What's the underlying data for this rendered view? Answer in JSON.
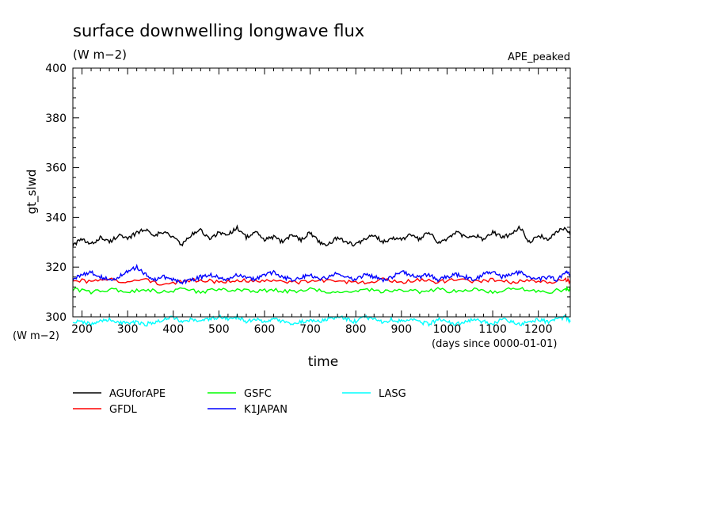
{
  "chart_data": {
    "type": "line",
    "title": "surface downwelling longwave flux",
    "subtitle": "(W m−2)",
    "experiment": "APE_peaked",
    "ylabel": "gt_slwd",
    "yunit": "(W m−2)",
    "xlabel": "time",
    "xunit": "(days since 0000-01-01)",
    "xlim": [
      180,
      1270
    ],
    "ylim": [
      300,
      400
    ],
    "xticks": [
      "200",
      "300",
      "400",
      "500",
      "600",
      "700",
      "800",
      "900",
      "1000",
      "1100",
      "1200"
    ],
    "yticks": [
      "300",
      "320",
      "340",
      "360",
      "380",
      "400"
    ],
    "grid": false,
    "legend_position": "bottom",
    "series": [
      {
        "name": "AGUforAPE",
        "color": "#000000",
        "x": [
          180,
          200,
          220,
          240,
          260,
          280,
          300,
          320,
          340,
          360,
          380,
          400,
          420,
          440,
          460,
          480,
          500,
          520,
          540,
          560,
          580,
          600,
          620,
          640,
          660,
          680,
          700,
          720,
          740,
          760,
          780,
          800,
          820,
          840,
          860,
          880,
          900,
          920,
          940,
          960,
          980,
          1000,
          1020,
          1040,
          1060,
          1080,
          1100,
          1120,
          1140,
          1160,
          1180,
          1200,
          1220,
          1240,
          1260,
          1270
        ],
        "y": [
          329,
          331,
          329,
          332,
          330,
          333,
          331,
          334,
          335,
          333,
          334,
          332,
          329,
          333,
          335,
          331,
          334,
          333,
          336,
          332,
          334,
          331,
          332,
          330,
          333,
          331,
          334,
          330,
          329,
          332,
          330,
          329,
          331,
          333,
          330,
          332,
          331,
          333,
          331,
          334,
          330,
          331,
          334,
          332,
          333,
          331,
          334,
          332,
          333,
          336,
          330,
          333,
          331,
          334,
          336,
          333
        ]
      },
      {
        "name": "GFDL",
        "color": "#ff0000",
        "x": [
          180,
          220,
          260,
          300,
          340,
          380,
          420,
          460,
          500,
          540,
          580,
          620,
          660,
          700,
          740,
          780,
          820,
          860,
          900,
          940,
          980,
          1020,
          1060,
          1100,
          1140,
          1180,
          1220,
          1260,
          1270
        ],
        "y": [
          315,
          314,
          315,
          314,
          315,
          313,
          314,
          315,
          314,
          315,
          314,
          315,
          314,
          314,
          315,
          314,
          314,
          315,
          314,
          315,
          314,
          315,
          314,
          315,
          314,
          315,
          314,
          315,
          314
        ]
      },
      {
        "name": "GSFC",
        "color": "#00ff00",
        "x": [
          180,
          220,
          260,
          300,
          340,
          380,
          420,
          460,
          500,
          540,
          580,
          620,
          660,
          700,
          740,
          780,
          820,
          860,
          900,
          940,
          980,
          1020,
          1060,
          1100,
          1140,
          1180,
          1220,
          1260,
          1270
        ],
        "y": [
          311,
          310,
          311,
          310,
          311,
          310,
          311,
          310,
          311,
          311,
          310,
          311,
          310,
          311,
          310,
          310,
          311,
          310,
          311,
          310,
          311,
          310,
          311,
          310,
          311,
          311,
          310,
          311,
          311
        ]
      },
      {
        "name": "K1JAPAN",
        "color": "#0000ff",
        "x": [
          180,
          200,
          220,
          240,
          260,
          280,
          300,
          320,
          340,
          360,
          380,
          400,
          420,
          440,
          460,
          480,
          500,
          520,
          540,
          560,
          580,
          600,
          620,
          640,
          660,
          680,
          700,
          720,
          740,
          760,
          780,
          800,
          820,
          840,
          860,
          880,
          900,
          920,
          940,
          960,
          980,
          1000,
          1020,
          1040,
          1060,
          1080,
          1100,
          1120,
          1140,
          1160,
          1180,
          1200,
          1220,
          1240,
          1260,
          1270
        ],
        "y": [
          315,
          317,
          318,
          316,
          315,
          316,
          318,
          320,
          317,
          315,
          316,
          315,
          314,
          315,
          316,
          317,
          316,
          315,
          317,
          316,
          315,
          317,
          318,
          316,
          315,
          316,
          317,
          315,
          316,
          318,
          316,
          315,
          317,
          316,
          315,
          316,
          318,
          317,
          316,
          317,
          315,
          316,
          317,
          316,
          315,
          317,
          318,
          316,
          317,
          318,
          316,
          315,
          316,
          315,
          318,
          317
        ]
      },
      {
        "name": "LASG",
        "color": "#00ffff",
        "x": [
          180,
          200,
          220,
          240,
          260,
          280,
          300,
          320,
          340,
          360,
          380,
          400,
          420,
          440,
          460,
          480,
          500,
          520,
          540,
          560,
          580,
          600,
          620,
          640,
          660,
          680,
          700,
          720,
          740,
          760,
          780,
          800,
          820,
          840,
          860,
          880,
          900,
          920,
          940,
          960,
          980,
          1000,
          1020,
          1040,
          1060,
          1080,
          1100,
          1120,
          1140,
          1160,
          1180,
          1200,
          1220,
          1240,
          1260,
          1270
        ],
        "y": [
          298,
          298,
          297,
          298,
          299,
          298,
          297,
          298,
          297,
          298,
          299,
          300,
          298,
          299,
          298,
          299,
          300,
          299,
          300,
          298,
          299,
          298,
          299,
          298,
          297,
          298,
          299,
          298,
          299,
          300,
          299,
          298,
          300,
          299,
          298,
          299,
          298,
          299,
          298,
          297,
          299,
          298,
          297,
          298,
          299,
          298,
          297,
          299,
          298,
          297,
          298,
          299,
          298,
          299,
          300,
          298
        ]
      }
    ]
  }
}
